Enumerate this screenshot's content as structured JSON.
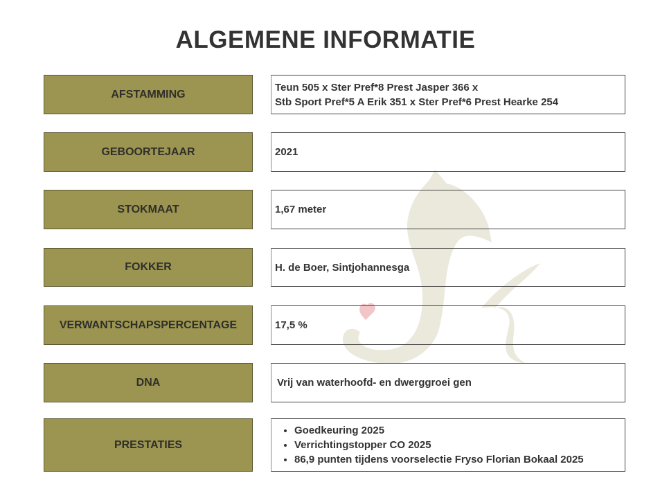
{
  "title": "ALGEMENE INFORMATIE",
  "colors": {
    "label_bg": "#9c9551",
    "watermark": "#ebe9dc",
    "heart": "#f2c6c8"
  },
  "rows": [
    {
      "label": "AFSTAMMING",
      "lines": [
        "Teun 505 x Ster Pref*8 Prest Jasper 366 x",
        "Stb Sport Pref*5 A Erik 351 x Ster Pref*6 Prest Hearke 254"
      ]
    },
    {
      "label": "GEBOORTEJAAR",
      "lines": [
        "2021"
      ]
    },
    {
      "label": "STOKMAAT",
      "lines": [
        "1,67 meter"
      ]
    },
    {
      "label": "FOKKER",
      "lines": [
        "H. de Boer, Sintjohannesga"
      ]
    },
    {
      "label": "VERWANTSCHAPSPERCENTAGE",
      "lines": [
        "17,5 %"
      ]
    },
    {
      "label": "DNA",
      "lines": [
        "Vrij van waterhoofd- en dwerggroei gen"
      ]
    },
    {
      "label": "PRESTATIES",
      "bullets": [
        "Goedkeuring 2025",
        "Verrichtingstopper CO 2025",
        "86,9 punten tijdens voorselectie Fryso Florian Bokaal 2025"
      ]
    }
  ]
}
